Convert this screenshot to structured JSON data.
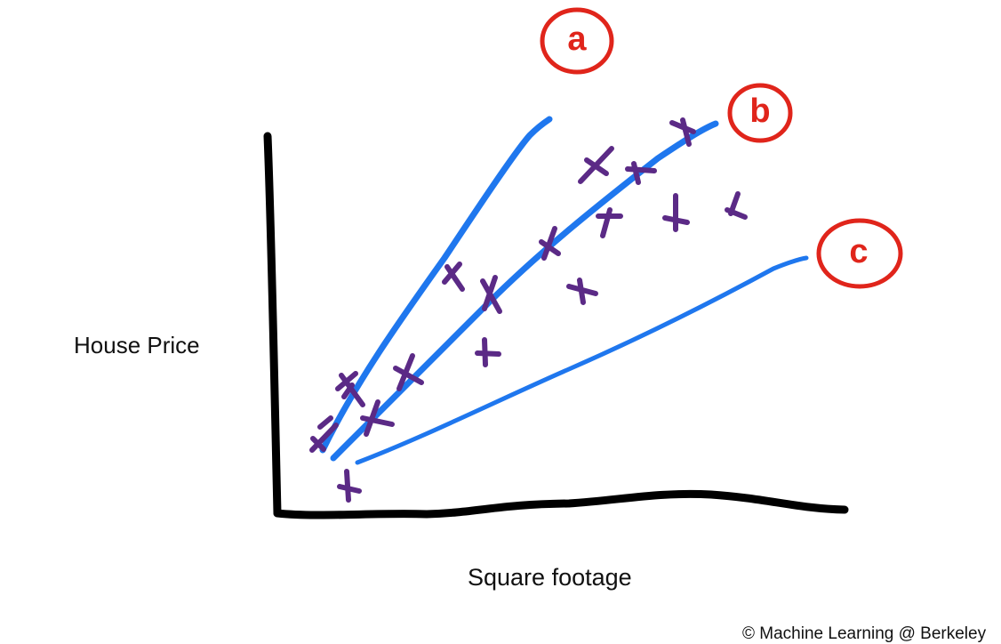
{
  "labels": {
    "y_axis": "House Price",
    "x_axis": "Square footage",
    "credit": "© Machine Learning @ Berkeley"
  },
  "colors": {
    "axis": "#000000",
    "line": "#1f77ee",
    "point": "#5b2a86",
    "annotation": "#e0251b"
  },
  "lines": [
    {
      "label": "a"
    },
    {
      "label": "b"
    },
    {
      "label": "c"
    }
  ]
}
